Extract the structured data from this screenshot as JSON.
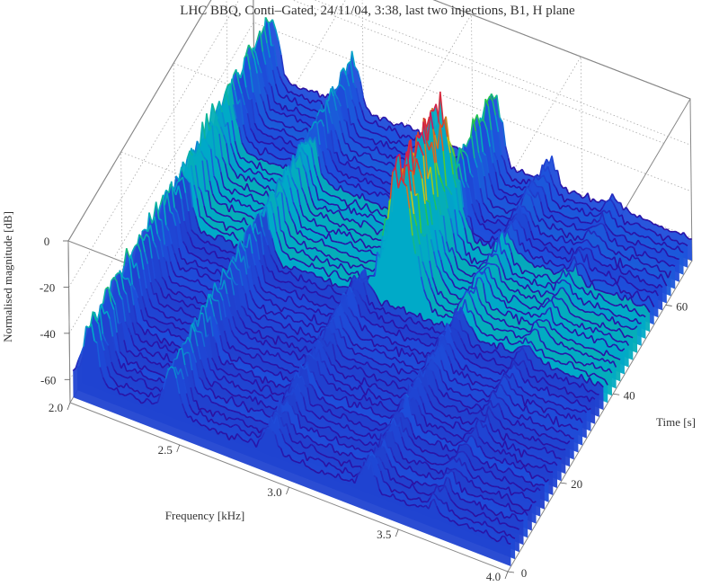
{
  "chart_data": {
    "type": "surface",
    "title": "LHC BBQ,  Conti–Gated,  24/11/04,  3:38,  last two injections,  B1,  H plane",
    "xlabel": "Frequency  [kHz]",
    "ylabel": "Time  [s]",
    "zlabel": "Normalised  magnitude  [dB]",
    "xlim": [
      2.0,
      4.0
    ],
    "ylim": [
      0,
      70
    ],
    "zlim": [
      -70,
      0
    ],
    "x_ticks": [
      "2.0",
      "2.5",
      "3.0",
      "3.5",
      "4.0"
    ],
    "y_ticks": [
      "0",
      "20",
      "40",
      "60"
    ],
    "z_ticks": [
      "0",
      "-20",
      "-40",
      "-60"
    ],
    "colormap": "purple-blue-cyan-green-yellow-red-magenta (height)",
    "noise_floor_db": -62,
    "features": [
      {
        "description": "ridge",
        "frequency_khz": 2.08,
        "time_range_s": [
          0,
          70
        ],
        "peak_db": -35
      },
      {
        "description": "ridge",
        "frequency_khz": 2.45,
        "time_range_s": [
          0,
          70
        ],
        "peak_db": -40
      },
      {
        "description": "tune line before injection",
        "frequency_khz": 2.9,
        "time_range_s": [
          0,
          36
        ],
        "peak_db": -50
      },
      {
        "description": "tune peak after injection",
        "frequency_khz": 3.05,
        "time_range_s": [
          38,
          54
        ],
        "peak_db": -5
      },
      {
        "description": "tune line after injection",
        "frequency_khz": 3.1,
        "time_range_s": [
          54,
          70
        ],
        "peak_db": -30
      },
      {
        "description": "ridge",
        "frequency_khz": 3.35,
        "time_range_s": [
          0,
          70
        ],
        "peak_db": -50
      },
      {
        "description": "ridge",
        "frequency_khz": 3.65,
        "time_range_s": [
          0,
          70
        ],
        "peak_db": -55
      }
    ]
  }
}
